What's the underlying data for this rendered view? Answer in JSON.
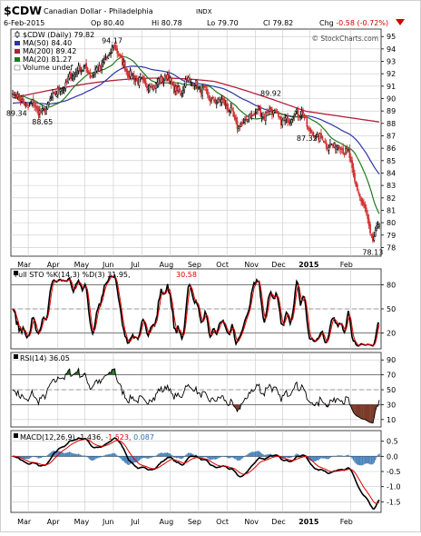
{
  "header": {
    "symbol": "$CDW",
    "name": "Canadian Dollar - Philadelphia",
    "exchange": "INDX",
    "date": "6-Feb-2015",
    "quote_parts": [
      {
        "k": "Op",
        "v": "80.40"
      },
      {
        "k": "Hi",
        "v": "80.78"
      },
      {
        "k": "Lo",
        "v": "79.70"
      },
      {
        "k": "Cl",
        "v": "79.82"
      },
      {
        "k": "Chg",
        "v": "-0.58 (-0.72%)"
      }
    ],
    "watermark": "© StockCharts.com",
    "arrow_icon": "down-triangle-icon",
    "colors": {
      "bg": "#ffffff",
      "panel_border": "#444444",
      "grid": "#c8c8c8",
      "dash": "#808080",
      "candle_red": "#d03030",
      "candle_black": "#000000",
      "ma50": "#2b35a8",
      "ma200": "#b0203a",
      "ma20": "#1f7a1f",
      "sto_k": "#000000",
      "sto_d": "#e00000",
      "rsi_line": "#000000",
      "rsi_over": "#2d6a2d",
      "rsi_under": "#7a3b2a",
      "macd_line": "#000000",
      "signal_line": "#e00000",
      "hist": "#2a6fb0",
      "chg_text": "#d00000"
    }
  },
  "chart_data": [
    {
      "type": "candlestick",
      "panel": "price",
      "legend": [
        {
          "label": "$CDW (Daily) 79.82",
          "color": "#000000",
          "icon": "candle-icon"
        },
        {
          "label": "MA(50) 84.40",
          "color": "#2b35a8",
          "icon": "line-icon"
        },
        {
          "label": "MA(200) 89.42",
          "color": "#b0203a",
          "icon": "line-icon"
        },
        {
          "label": "MA(20) 81.27",
          "color": "#1f7a1f",
          "icon": "line-icon"
        },
        {
          "label": "Volume undef",
          "color": "#888888",
          "icon": "volume-icon"
        }
      ],
      "x_labels": [
        "Mar",
        "Apr",
        "May",
        "Jun",
        "Jul",
        "Aug",
        "Sep",
        "Oct",
        "Nov",
        "Dec",
        "2015",
        "Feb"
      ],
      "ylim": [
        77.3,
        95.6
      ],
      "y_ticks": [
        78,
        79,
        80,
        81,
        82,
        83,
        84,
        85,
        86,
        87,
        88,
        89,
        90,
        91,
        92,
        93,
        94,
        95
      ],
      "close_anchors": [
        [
          0,
          90.4
        ],
        [
          5,
          90.1
        ],
        [
          10,
          89.3
        ],
        [
          15,
          89.6
        ],
        [
          20,
          89.0
        ],
        [
          23,
          88.8
        ],
        [
          28,
          89.6
        ],
        [
          33,
          90.5
        ],
        [
          40,
          91.0
        ],
        [
          45,
          91.8
        ],
        [
          50,
          92.2
        ],
        [
          55,
          92.6
        ],
        [
          60,
          91.9
        ],
        [
          65,
          92.3
        ],
        [
          70,
          92.8
        ],
        [
          75,
          93.6
        ],
        [
          78,
          94.2
        ],
        [
          82,
          93.7
        ],
        [
          85,
          92.8
        ],
        [
          90,
          92.0
        ],
        [
          95,
          91.6
        ],
        [
          100,
          91.3
        ],
        [
          105,
          91.0
        ],
        [
          110,
          91.1
        ],
        [
          115,
          91.5
        ],
        [
          120,
          91.8
        ],
        [
          125,
          90.8
        ],
        [
          130,
          90.4
        ],
        [
          135,
          91.6
        ],
        [
          140,
          91.3
        ],
        [
          145,
          90.8
        ],
        [
          150,
          90.4
        ],
        [
          155,
          89.7
        ],
        [
          160,
          89.9
        ],
        [
          165,
          89.5
        ],
        [
          170,
          88.7
        ],
        [
          175,
          87.6
        ],
        [
          180,
          88.2
        ],
        [
          185,
          88.7
        ],
        [
          190,
          89.0
        ],
        [
          195,
          88.6
        ],
        [
          200,
          89.2
        ],
        [
          205,
          88.5
        ],
        [
          210,
          88.1
        ],
        [
          215,
          88.5
        ],
        [
          220,
          88.9
        ],
        [
          225,
          88.8
        ],
        [
          230,
          87.3
        ],
        [
          235,
          87.0
        ],
        [
          240,
          86.8
        ],
        [
          245,
          86.1
        ],
        [
          250,
          86.3
        ],
        [
          255,
          86.0
        ],
        [
          260,
          85.6
        ],
        [
          263,
          84.3
        ],
        [
          266,
          82.8
        ],
        [
          269,
          82.1
        ],
        [
          271,
          81.6
        ],
        [
          273,
          81.0
        ],
        [
          275,
          80.1
        ],
        [
          277,
          79.1
        ],
        [
          279,
          78.6
        ],
        [
          281,
          79.0
        ],
        [
          283,
          79.8
        ],
        [
          284,
          79.82
        ]
      ],
      "annotations": [
        {
          "label": "94.17",
          "x": 77,
          "y": 94.17,
          "pos": "above"
        },
        {
          "label": "89.34",
          "x": 3,
          "y": 89.34,
          "pos": "below"
        },
        {
          "label": "88.65",
          "x": 23,
          "y": 88.65,
          "pos": "below"
        },
        {
          "label": "89.92",
          "x": 200,
          "y": 89.92,
          "pos": "above"
        },
        {
          "label": "87.32",
          "x": 228,
          "y": 87.32,
          "pos": "below"
        },
        {
          "label": "78.13",
          "x": 279,
          "y": 78.13,
          "pos": "below"
        }
      ],
      "ma_last": {
        "ma50": 84.4,
        "ma200": 89.42,
        "ma20": 81.27
      }
    },
    {
      "type": "line",
      "panel": "stochastic",
      "legend_label": "Full STO %K(14,3) %D(3) 31.95,",
      "legend_value2": "30.58",
      "ylim": [
        0,
        100
      ],
      "y_ticks": [
        20,
        50,
        80
      ],
      "k_last": 31.95,
      "d_last": 30.58
    },
    {
      "type": "area",
      "panel": "rsi",
      "legend_label": "RSI(14) 36.05",
      "ylim": [
        0,
        100
      ],
      "y_ticks": [
        10,
        30,
        50,
        70,
        90
      ],
      "last": 36.05
    },
    {
      "type": "bar",
      "panel": "macd",
      "legend_label": "MACD(12,26,9) -1.436,",
      "legend_value2": "-1.523,",
      "legend_value3": "0.087",
      "ylim": [
        -1.85,
        0.85
      ],
      "y_ticks": [
        -1.5,
        -1.0,
        -0.5,
        0.0,
        0.5
      ],
      "y_tick_labels": [
        "-1.5",
        "-1.0",
        "-0.5",
        "0.0",
        "0.5"
      ],
      "macd_last": -1.436,
      "signal_last": -1.523,
      "hist_last": 0.087
    }
  ]
}
